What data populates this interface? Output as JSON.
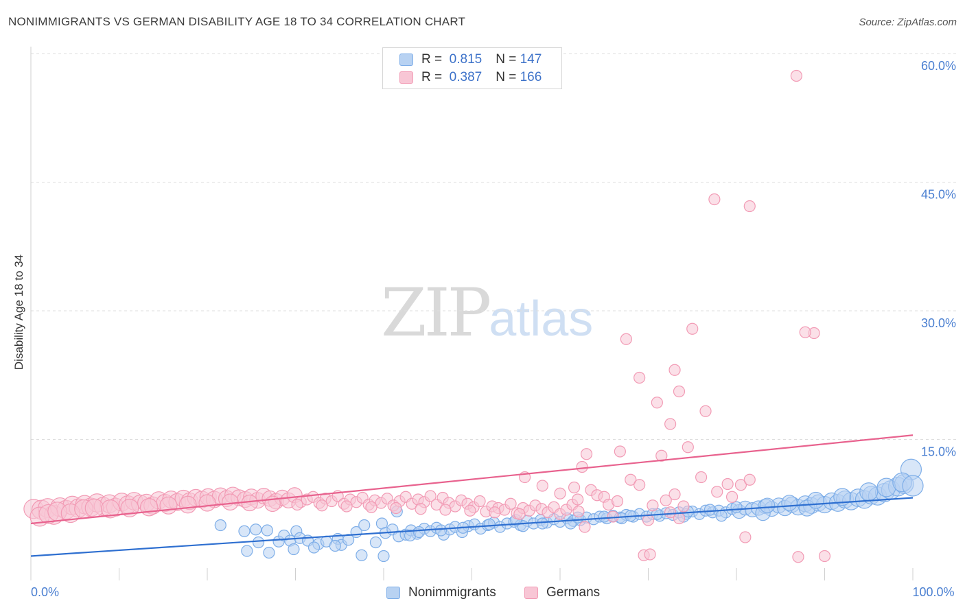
{
  "title": "NONIMMIGRANTS VS GERMAN DISABILITY AGE 18 TO 34 CORRELATION CHART",
  "source": "Source: ZipAtlas.com",
  "watermark": {
    "zip": "ZIP",
    "atlas": "atlas"
  },
  "legend_top": [
    {
      "r_label": "R =",
      "r_value": "0.815",
      "n_label": "N =",
      "n_value": "147"
    },
    {
      "r_label": "R =",
      "r_value": "0.387",
      "n_label": "N =",
      "n_value": "166"
    }
  ],
  "legend_bottom": [
    "Nonimmigrants",
    "Germans"
  ],
  "chart_data": {
    "type": "scatter",
    "title": "NONIMMIGRANTS VS GERMAN DISABILITY AGE 18 TO 34 CORRELATION CHART",
    "xlabel": "",
    "ylabel": "Disability Age 18 to 34",
    "xlim": [
      0,
      100
    ],
    "ylim": [
      0,
      60
    ],
    "x_ticks": [
      0,
      10,
      20,
      30,
      40,
      50,
      60,
      70,
      80,
      90,
      100
    ],
    "x_tick_labels": [
      {
        "x": 0,
        "label": "0.0%"
      },
      {
        "x": 100,
        "label": "100.0%"
      }
    ],
    "y_ticks": [
      15,
      30,
      45,
      60
    ],
    "y_tick_labels": [
      "15.0%",
      "30.0%",
      "45.0%",
      "60.0%"
    ],
    "grid": true,
    "legend": "top-center and bottom",
    "series": [
      {
        "name": "Nonimmigrants",
        "color": "#7eaee8",
        "fill": "#b8d2f2",
        "line_color": "#2e6fd0",
        "stats": {
          "R": 0.815,
          "N": 147
        },
        "trend": [
          [
            0,
            1.4
          ],
          [
            100,
            8.2
          ]
        ],
        "points": [
          [
            21.5,
            5.0
          ],
          [
            24.2,
            4.3
          ],
          [
            25.5,
            4.5
          ],
          [
            25.8,
            3.0
          ],
          [
            26.8,
            4.4
          ],
          [
            28.1,
            3.1
          ],
          [
            28.7,
            3.8
          ],
          [
            29.4,
            3.2
          ],
          [
            30.1,
            4.3
          ],
          [
            30.5,
            3.5
          ],
          [
            31.4,
            3.2
          ],
          [
            32.6,
            2.8
          ],
          [
            33.5,
            3.1
          ],
          [
            34.8,
            3.4
          ],
          [
            35.2,
            2.7
          ],
          [
            36.0,
            3.3
          ],
          [
            36.9,
            4.2
          ],
          [
            37.8,
            5.0
          ],
          [
            39.1,
            3.0
          ],
          [
            39.8,
            5.2
          ],
          [
            40.2,
            4.1
          ],
          [
            41.0,
            4.5
          ],
          [
            41.7,
            3.7
          ],
          [
            42.5,
            3.9
          ],
          [
            43.1,
            4.4
          ],
          [
            43.8,
            4.0
          ],
          [
            44.6,
            4.6
          ],
          [
            45.3,
            4.3
          ],
          [
            46.0,
            4.7
          ],
          [
            46.8,
            3.9
          ],
          [
            47.5,
            4.5
          ],
          [
            48.1,
            4.8
          ],
          [
            48.9,
            4.2
          ],
          [
            49.6,
            4.9
          ],
          [
            50.3,
            5.1
          ],
          [
            51.0,
            4.6
          ],
          [
            51.8,
            5.0
          ],
          [
            52.5,
            5.3
          ],
          [
            53.2,
            4.8
          ],
          [
            54.0,
            5.2
          ],
          [
            54.8,
            5.4
          ],
          [
            55.5,
            5.0
          ],
          [
            56.3,
            5.5
          ],
          [
            57.0,
            5.2
          ],
          [
            57.8,
            5.6
          ],
          [
            58.5,
            5.3
          ],
          [
            59.3,
            5.7
          ],
          [
            60.0,
            5.4
          ],
          [
            60.8,
            5.8
          ],
          [
            61.5,
            5.5
          ],
          [
            62.3,
            5.6
          ],
          [
            63.0,
            5.9
          ],
          [
            63.8,
            5.7
          ],
          [
            64.5,
            6.0
          ],
          [
            65.3,
            5.8
          ],
          [
            66.0,
            6.1
          ],
          [
            66.8,
            5.9
          ],
          [
            67.5,
            6.2
          ],
          [
            68.3,
            6.0
          ],
          [
            69.0,
            6.3
          ],
          [
            69.8,
            6.0
          ],
          [
            70.5,
            6.3
          ],
          [
            71.3,
            6.1
          ],
          [
            72.0,
            6.4
          ],
          [
            72.8,
            6.2
          ],
          [
            73.5,
            6.5
          ],
          [
            74.3,
            6.3
          ],
          [
            75.0,
            6.6
          ],
          [
            75.8,
            6.3
          ],
          [
            76.5,
            6.7
          ],
          [
            77.3,
            6.5
          ],
          [
            78.0,
            6.7
          ],
          [
            78.8,
            6.5
          ],
          [
            79.5,
            6.9
          ],
          [
            80.3,
            6.6
          ],
          [
            81.0,
            7.0
          ],
          [
            81.8,
            6.8
          ],
          [
            82.5,
            7.0
          ],
          [
            83.3,
            7.2
          ],
          [
            84.0,
            6.9
          ],
          [
            84.8,
            7.3
          ],
          [
            85.5,
            7.0
          ],
          [
            86.3,
            7.4
          ],
          [
            87.0,
            7.1
          ],
          [
            87.8,
            7.5
          ],
          [
            88.5,
            7.3
          ],
          [
            89.3,
            7.6
          ],
          [
            90.0,
            7.4
          ],
          [
            90.8,
            7.8
          ],
          [
            91.5,
            7.6
          ],
          [
            92.3,
            8.0
          ],
          [
            93.0,
            7.8
          ],
          [
            93.8,
            8.2
          ],
          [
            94.5,
            8.0
          ],
          [
            95.3,
            8.5
          ],
          [
            96.0,
            8.4
          ],
          [
            96.8,
            8.8
          ],
          [
            97.5,
            9.1
          ],
          [
            98.3,
            9.5
          ],
          [
            99.0,
            9.8
          ],
          [
            99.8,
            11.5
          ],
          [
            24.5,
            2.0
          ],
          [
            27.0,
            1.8
          ],
          [
            29.8,
            2.2
          ],
          [
            32.1,
            2.4
          ],
          [
            34.5,
            2.6
          ],
          [
            37.5,
            1.5
          ],
          [
            40.0,
            1.4
          ],
          [
            43.0,
            3.8
          ],
          [
            55.8,
            4.9
          ],
          [
            61.2,
            5.2
          ],
          [
            67.0,
            5.8
          ],
          [
            74.0,
            6.0
          ],
          [
            78.3,
            6.1
          ],
          [
            83.0,
            6.4
          ],
          [
            88.0,
            7.0
          ],
          [
            41.5,
            6.6
          ],
          [
            44.0,
            4.2
          ],
          [
            46.5,
            4.4
          ],
          [
            49.0,
            4.7
          ],
          [
            52.0,
            5.1
          ],
          [
            55.0,
            5.6
          ],
          [
            58.0,
            5.2
          ],
          [
            62.0,
            5.9
          ],
          [
            65.0,
            6.0
          ],
          [
            68.0,
            6.1
          ],
          [
            71.0,
            6.3
          ],
          [
            74.5,
            6.6
          ],
          [
            77.0,
            6.8
          ],
          [
            80.0,
            7.1
          ],
          [
            83.5,
            7.3
          ],
          [
            86.0,
            7.6
          ],
          [
            89.0,
            7.9
          ],
          [
            92.0,
            8.3
          ],
          [
            95.0,
            8.9
          ],
          [
            97.0,
            9.4
          ],
          [
            98.8,
            10.0
          ],
          [
            100.0,
            9.6
          ]
        ]
      },
      {
        "name": "Germans",
        "color": "#f29bb5",
        "fill": "#f8c6d5",
        "line_color": "#e8628e",
        "stats": {
          "R": 0.387,
          "N": 166
        },
        "trend": [
          [
            0,
            5.2
          ],
          [
            100,
            15.5
          ]
        ],
        "points": [
          [
            0.3,
            6.9
          ],
          [
            1.2,
            6.8
          ],
          [
            1.9,
            7.0
          ],
          [
            2.6,
            6.2
          ],
          [
            3.3,
            7.1
          ],
          [
            4.0,
            6.8
          ],
          [
            4.7,
            7.3
          ],
          [
            5.4,
            7.0
          ],
          [
            6.1,
            7.4
          ],
          [
            6.8,
            7.1
          ],
          [
            7.5,
            7.6
          ],
          [
            8.2,
            7.2
          ],
          [
            8.9,
            7.5
          ],
          [
            9.6,
            7.1
          ],
          [
            10.3,
            7.7
          ],
          [
            11.0,
            7.4
          ],
          [
            11.7,
            7.8
          ],
          [
            12.4,
            7.5
          ],
          [
            13.1,
            7.6
          ],
          [
            13.8,
            7.3
          ],
          [
            14.5,
            7.9
          ],
          [
            15.2,
            7.6
          ],
          [
            15.9,
            8.0
          ],
          [
            16.6,
            7.7
          ],
          [
            17.3,
            8.1
          ],
          [
            18.0,
            7.8
          ],
          [
            18.7,
            8.2
          ],
          [
            19.4,
            8.0
          ],
          [
            20.1,
            8.3
          ],
          [
            20.8,
            8.0
          ],
          [
            21.5,
            8.4
          ],
          [
            22.2,
            8.1
          ],
          [
            22.9,
            8.5
          ],
          [
            23.6,
            8.2
          ],
          [
            24.3,
            8.0
          ],
          [
            25.0,
            8.3
          ],
          [
            25.7,
            7.9
          ],
          [
            26.4,
            8.4
          ],
          [
            27.1,
            8.1
          ],
          [
            27.8,
            7.8
          ],
          [
            28.5,
            8.2
          ],
          [
            29.2,
            7.9
          ],
          [
            29.9,
            8.5
          ],
          [
            30.6,
            7.7
          ],
          [
            31.3,
            8.0
          ],
          [
            32.0,
            8.3
          ],
          [
            32.7,
            7.6
          ],
          [
            33.4,
            8.1
          ],
          [
            34.1,
            7.8
          ],
          [
            34.8,
            8.4
          ],
          [
            35.5,
            7.5
          ],
          [
            36.2,
            8.0
          ],
          [
            36.9,
            7.7
          ],
          [
            37.6,
            8.2
          ],
          [
            38.3,
            7.4
          ],
          [
            39.0,
            7.9
          ],
          [
            39.7,
            7.6
          ],
          [
            40.4,
            8.1
          ],
          [
            41.1,
            7.3
          ],
          [
            41.8,
            7.8
          ],
          [
            42.5,
            8.3
          ],
          [
            43.2,
            7.5
          ],
          [
            43.9,
            8.0
          ],
          [
            44.6,
            7.7
          ],
          [
            45.3,
            8.4
          ],
          [
            46.0,
            7.4
          ],
          [
            46.7,
            8.2
          ],
          [
            47.4,
            7.6
          ],
          [
            48.1,
            7.2
          ],
          [
            48.8,
            7.9
          ],
          [
            49.5,
            7.5
          ],
          [
            50.2,
            7.1
          ],
          [
            50.9,
            7.8
          ],
          [
            51.6,
            6.6
          ],
          [
            52.3,
            7.2
          ],
          [
            53.0,
            7.0
          ],
          [
            53.7,
            6.8
          ],
          [
            54.4,
            7.5
          ],
          [
            55.1,
            6.4
          ],
          [
            55.8,
            7.0
          ],
          [
            56.5,
            6.7
          ],
          [
            57.2,
            7.3
          ],
          [
            57.9,
            6.9
          ],
          [
            58.6,
            6.5
          ],
          [
            59.3,
            7.1
          ],
          [
            60.0,
            6.3
          ],
          [
            60.7,
            6.8
          ],
          [
            61.4,
            7.4
          ],
          [
            62.1,
            6.6
          ],
          [
            1.0,
            6.0
          ],
          [
            2.0,
            6.3
          ],
          [
            3.0,
            6.6
          ],
          [
            4.5,
            6.4
          ],
          [
            6.0,
            6.9
          ],
          [
            7.2,
            7.0
          ],
          [
            9.0,
            6.9
          ],
          [
            11.2,
            7.0
          ],
          [
            13.4,
            7.1
          ],
          [
            15.6,
            7.3
          ],
          [
            17.8,
            7.4
          ],
          [
            20.0,
            7.6
          ],
          [
            22.6,
            7.7
          ],
          [
            24.8,
            7.6
          ],
          [
            27.4,
            7.5
          ],
          [
            30.2,
            7.4
          ],
          [
            33.0,
            7.3
          ],
          [
            35.8,
            7.2
          ],
          [
            38.6,
            7.1
          ],
          [
            41.4,
            7.0
          ],
          [
            44.2,
            6.9
          ],
          [
            47.0,
            6.8
          ],
          [
            49.8,
            6.7
          ],
          [
            52.6,
            6.5
          ],
          [
            55.4,
            6.3
          ],
          [
            56.0,
            10.6
          ],
          [
            58.0,
            9.6
          ],
          [
            60.0,
            8.7
          ],
          [
            62.0,
            8.0
          ],
          [
            62.8,
            4.8
          ],
          [
            61.6,
            9.4
          ],
          [
            63.5,
            9.1
          ],
          [
            64.2,
            8.5
          ],
          [
            65.0,
            8.3
          ],
          [
            65.5,
            7.4
          ],
          [
            66.0,
            6.0
          ],
          [
            66.5,
            7.8
          ],
          [
            68.0,
            10.3
          ],
          [
            69.0,
            9.7
          ],
          [
            70.0,
            5.6
          ],
          [
            70.5,
            7.3
          ],
          [
            72.0,
            7.9
          ],
          [
            72.5,
            6.5
          ],
          [
            73.0,
            8.6
          ],
          [
            73.5,
            5.8
          ],
          [
            74.0,
            7.2
          ],
          [
            62.5,
            11.8
          ],
          [
            63.0,
            13.3
          ],
          [
            66.8,
            13.6
          ],
          [
            67.5,
            26.7
          ],
          [
            69.0,
            22.2
          ],
          [
            71.0,
            19.3
          ],
          [
            71.5,
            13.1
          ],
          [
            72.5,
            16.8
          ],
          [
            73.0,
            23.1
          ],
          [
            73.5,
            20.6
          ],
          [
            74.5,
            14.1
          ],
          [
            75.0,
            27.9
          ],
          [
            76.5,
            18.3
          ],
          [
            77.5,
            43.0
          ],
          [
            79.0,
            9.8
          ],
          [
            80.5,
            9.7
          ],
          [
            81.5,
            10.3
          ],
          [
            76.0,
            10.6
          ],
          [
            77.8,
            8.9
          ],
          [
            79.5,
            8.3
          ],
          [
            69.5,
            1.5
          ],
          [
            70.2,
            1.6
          ],
          [
            81.0,
            3.6
          ],
          [
            81.5,
            42.2
          ],
          [
            88.8,
            27.4
          ],
          [
            87.8,
            27.5
          ],
          [
            86.8,
            57.4
          ],
          [
            87.0,
            1.3
          ],
          [
            90.0,
            1.4
          ]
        ]
      }
    ]
  }
}
